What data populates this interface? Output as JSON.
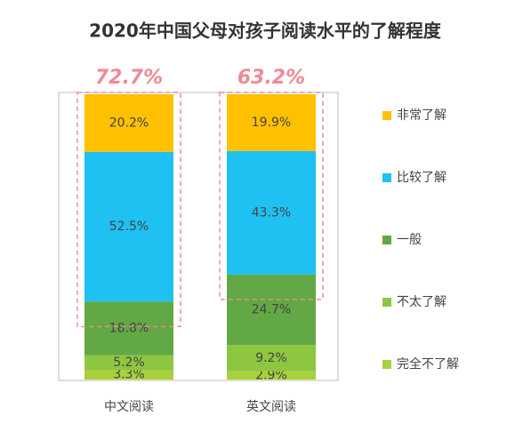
{
  "chart_data": {
    "type": "stacked_bar",
    "title": "2020年中国父母对孩子阅读水平的了解程度",
    "categories": [
      "中文阅读",
      "英文阅读"
    ],
    "series": [
      {
        "name": "完全不了解",
        "color": "#a9d13a",
        "values": [
          3.3,
          2.9
        ],
        "value_labels": [
          "3.3%",
          "2.9%"
        ]
      },
      {
        "name": "不太了解",
        "color": "#8dc641",
        "values": [
          5.2,
          9.2
        ],
        "value_labels": [
          "5.2%",
          "9.2%"
        ]
      },
      {
        "name": "一般",
        "color": "#62a844",
        "values": [
          18.8,
          24.7
        ],
        "value_labels": [
          "18.8%",
          "24.7%"
        ]
      },
      {
        "name": "比较了解",
        "color": "#1fc1f2",
        "values": [
          52.5,
          43.3
        ],
        "value_labels": [
          "52.5%",
          "43.3%"
        ]
      },
      {
        "name": "非常了解",
        "color": "#ffc000",
        "values": [
          20.2,
          19.9
        ],
        "value_labels": [
          "20.2%",
          "19.9%"
        ]
      }
    ],
    "totals": {
      "values": [
        72.7,
        63.2
      ],
      "value_labels": [
        "72.7%",
        "63.2%"
      ],
      "color": "#f08a96"
    },
    "ylim": [
      0,
      100
    ]
  }
}
